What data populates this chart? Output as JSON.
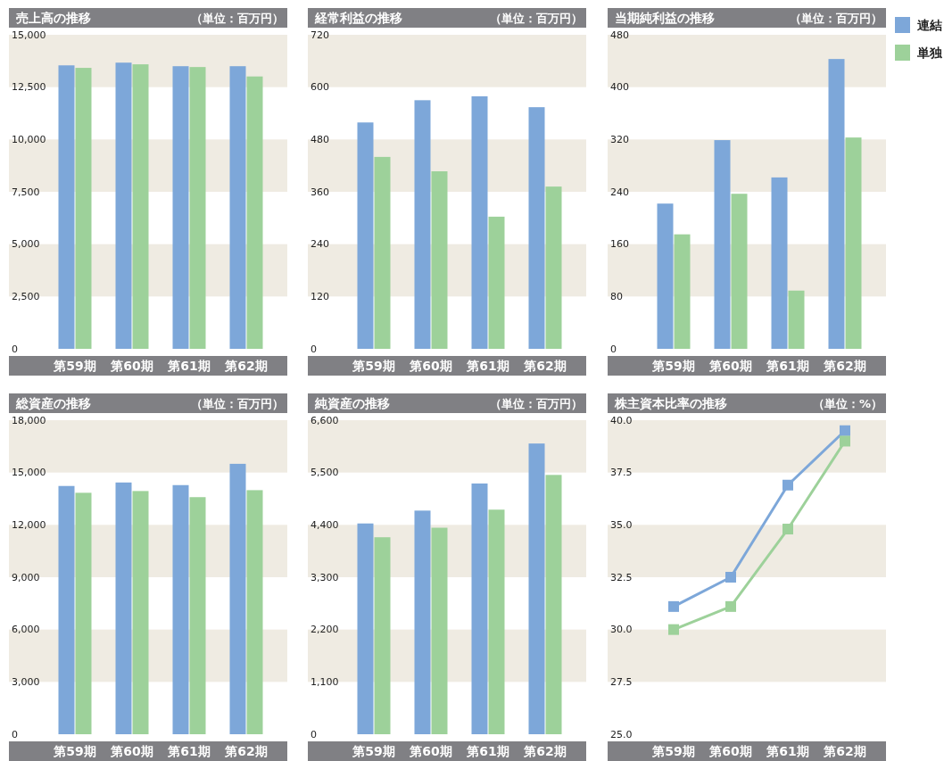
{
  "chart_data": [
    {
      "type": "bar",
      "title": "売上高の推移",
      "subtitle": "（単位：百万円）",
      "categories": [
        "第59期",
        "第60期",
        "第61期",
        "第62期"
      ],
      "ylim": [
        0,
        15000
      ],
      "yticks": [
        0,
        {
          "value": 2500,
          "label": "2,500"
        },
        {
          "value": 5000,
          "label": "5,000"
        },
        {
          "value": 7500,
          "label": "7,500"
        },
        {
          "value": 10000,
          "label": "10,000"
        },
        {
          "value": 12500,
          "label": "12,500"
        },
        {
          "value": 15000,
          "label": "15,000"
        }
      ],
      "bands": [
        {
          "axis": "y",
          "from": 12500,
          "to": 15000,
          "color": "#efebe2"
        },
        {
          "axis": "y",
          "from": 7500,
          "to": 10000,
          "color": "#efebe2"
        },
        {
          "axis": "y",
          "from": 2500,
          "to": 5000,
          "color": "#efebe2"
        }
      ],
      "series": [
        {
          "color": "#7da7d9",
          "values": [
            13540,
            13670,
            13500,
            13500
          ]
        },
        {
          "color": "#9dd19a",
          "values": [
            13420,
            13590,
            13460,
            13010
          ]
        }
      ]
    },
    {
      "type": "bar",
      "title": "経常利益の推移",
      "subtitle": "（単位：百万円）",
      "categories": [
        "第59期",
        "第60期",
        "第61期",
        "第62期"
      ],
      "ylim": [
        0,
        720
      ],
      "yticks": [
        0,
        120,
        240,
        360,
        480,
        600,
        720
      ],
      "bands": [
        {
          "axis": "y",
          "from": 600,
          "to": 720,
          "color": "#efebe2"
        },
        {
          "axis": "y",
          "from": 360,
          "to": 480,
          "color": "#efebe2"
        },
        {
          "axis": "y",
          "from": 120,
          "to": 240,
          "color": "#efebe2"
        }
      ],
      "series": [
        {
          "color": "#7da7d9",
          "values": [
            519,
            570,
            579,
            554
          ]
        },
        {
          "color": "#9dd19a",
          "values": [
            440,
            407,
            303,
            372
          ]
        }
      ]
    },
    {
      "type": "bar",
      "title": "当期純利益の推移",
      "subtitle": "（単位：百万円）",
      "categories": [
        "第59期",
        "第60期",
        "第61期",
        "第62期"
      ],
      "ylim": [
        0,
        480
      ],
      "yticks": [
        0,
        80,
        160,
        240,
        320,
        400,
        480
      ],
      "legend": "right",
      "bands": [
        {
          "axis": "y",
          "from": 400,
          "to": 480,
          "color": "#efebe2"
        },
        {
          "axis": "y",
          "from": 240,
          "to": 320,
          "color": "#efebe2"
        },
        {
          "axis": "y",
          "from": 80,
          "to": 160,
          "color": "#efebe2"
        }
      ],
      "series": [
        {
          "name": "連結",
          "color": "#7da7d9",
          "values": [
            222,
            319,
            262,
            443
          ]
        },
        {
          "name": "単独",
          "color": "#9dd19a",
          "values": [
            175,
            237,
            89,
            323
          ]
        }
      ]
    },
    {
      "type": "bar",
      "title": "総資産の推移",
      "subtitle": "（単位：百万円）",
      "categories": [
        "第59期",
        "第60期",
        "第61期",
        "第62期"
      ],
      "ylim": [
        0,
        18000
      ],
      "yticks": [
        0,
        {
          "value": 3000,
          "label": "3,000"
        },
        {
          "value": 6000,
          "label": "6,000"
        },
        {
          "value": 9000,
          "label": "9,000"
        },
        {
          "value": 12000,
          "label": "12,000"
        },
        {
          "value": 15000,
          "label": "15,000"
        },
        {
          "value": 18000,
          "label": "18,000"
        }
      ],
      "bands": [
        {
          "axis": "y",
          "from": 15000,
          "to": 18000,
          "color": "#efebe2"
        },
        {
          "axis": "y",
          "from": 9000,
          "to": 12000,
          "color": "#efebe2"
        },
        {
          "axis": "y",
          "from": 3000,
          "to": 6000,
          "color": "#efebe2"
        }
      ],
      "series": [
        {
          "color": "#7da7d9",
          "values": [
            14230,
            14430,
            14280,
            15500
          ]
        },
        {
          "color": "#9dd19a",
          "values": [
            13840,
            13940,
            13590,
            13990
          ]
        }
      ]
    },
    {
      "type": "bar",
      "title": "純資産の推移",
      "subtitle": "（単位：百万円）",
      "categories": [
        "第59期",
        "第60期",
        "第61期",
        "第62期"
      ],
      "ylim": [
        0,
        6600
      ],
      "yticks": [
        0,
        {
          "value": 1100,
          "label": "1,100"
        },
        {
          "value": 2200,
          "label": "2,200"
        },
        {
          "value": 3300,
          "label": "3,300"
        },
        {
          "value": 4400,
          "label": "4,400"
        },
        {
          "value": 5500,
          "label": "5,500"
        },
        {
          "value": 6600,
          "label": "6,600"
        }
      ],
      "bands": [
        {
          "axis": "y",
          "from": 5500,
          "to": 6600,
          "color": "#efebe2"
        },
        {
          "axis": "y",
          "from": 3300,
          "to": 4400,
          "color": "#efebe2"
        },
        {
          "axis": "y",
          "from": 1100,
          "to": 2200,
          "color": "#efebe2"
        }
      ],
      "series": [
        {
          "color": "#7da7d9",
          "values": [
            4430,
            4700,
            5270,
            6110
          ]
        },
        {
          "color": "#9dd19a",
          "values": [
            4140,
            4340,
            4720,
            5450
          ]
        }
      ]
    },
    {
      "type": "line",
      "title": "株主資本比率の推移",
      "subtitle": "（単位：%）",
      "categories": [
        "第59期",
        "第60期",
        "第61期",
        "第62期"
      ],
      "ylim": [
        25,
        40
      ],
      "yticks": [
        {
          "value": 25,
          "label": "25.0"
        },
        {
          "value": 27.5,
          "label": "27.5"
        },
        {
          "value": 30,
          "label": "30.0"
        },
        {
          "value": 32.5,
          "label": "32.5"
        },
        {
          "value": 35,
          "label": "35.0"
        },
        {
          "value": 37.5,
          "label": "37.5"
        },
        {
          "value": 40,
          "label": "40.0"
        }
      ],
      "marker": "square",
      "bands": [
        {
          "axis": "y",
          "from": 37.5,
          "to": 40,
          "color": "#efebe2"
        },
        {
          "axis": "y",
          "from": 32.5,
          "to": 35,
          "color": "#efebe2"
        },
        {
          "axis": "y",
          "from": 27.5,
          "to": 30,
          "color": "#efebe2"
        }
      ],
      "series": [
        {
          "color": "#7da7d9",
          "values": [
            31.1,
            32.5,
            36.9,
            39.5
          ]
        },
        {
          "color": "#9dd19a",
          "values": [
            30.0,
            31.1,
            34.8,
            39.0
          ]
        }
      ]
    }
  ]
}
